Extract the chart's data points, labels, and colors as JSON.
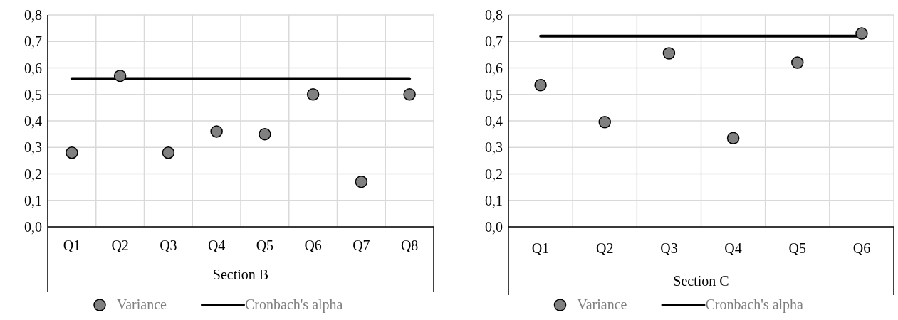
{
  "chart_data": [
    {
      "type": "scatter",
      "xlabel": "Section B",
      "categories": [
        "Q1",
        "Q2",
        "Q3",
        "Q4",
        "Q5",
        "Q6",
        "Q7",
        "Q8"
      ],
      "ylim": [
        0,
        0.8
      ],
      "yticks": [
        {
          "value": 0,
          "label": "0,0"
        },
        {
          "value": 0.1,
          "label": "0,1"
        },
        {
          "value": 0.2,
          "label": "0,2"
        },
        {
          "value": 0.3,
          "label": "0,3"
        },
        {
          "value": 0.4,
          "label": "0,4"
        },
        {
          "value": 0.5,
          "label": "0,5"
        },
        {
          "value": 0.6,
          "label": "0,6"
        },
        {
          "value": 0.7,
          "label": "0,7"
        },
        {
          "value": 0.8,
          "label": "0,8"
        }
      ],
      "grid": true,
      "legend": "bottom",
      "series": [
        {
          "name": "Variance",
          "color": "#808080",
          "marker": "circle",
          "values": [
            0.28,
            0.57,
            0.28,
            0.36,
            0.35,
            0.5,
            0.17,
            0.5
          ]
        },
        {
          "name": "Cronbach's alpha",
          "type": "line",
          "color": "#000000",
          "marker": "none",
          "values": [
            0.56,
            0.56,
            0.56,
            0.56,
            0.56,
            0.56,
            0.56,
            0.56
          ]
        }
      ]
    },
    {
      "type": "scatter",
      "xlabel": "Section C",
      "categories": [
        "Q1",
        "Q2",
        "Q3",
        "Q4",
        "Q5",
        "Q6"
      ],
      "ylim": [
        0,
        0.8
      ],
      "yticks": [
        {
          "value": 0,
          "label": "0,0"
        },
        {
          "value": 0.1,
          "label": "0,1"
        },
        {
          "value": 0.2,
          "label": "0,2"
        },
        {
          "value": 0.3,
          "label": "0,3"
        },
        {
          "value": 0.4,
          "label": "0,4"
        },
        {
          "value": 0.5,
          "label": "0,5"
        },
        {
          "value": 0.6,
          "label": "0,6"
        },
        {
          "value": 0.7,
          "label": "0,7"
        },
        {
          "value": 0.8,
          "label": "0,8"
        }
      ],
      "grid": true,
      "legend": "bottom",
      "series": [
        {
          "name": "Variance",
          "color": "#808080",
          "marker": "circle",
          "values": [
            0.535,
            0.395,
            0.655,
            0.335,
            0.62,
            0.73
          ]
        },
        {
          "name": "Cronbach's alpha",
          "type": "line",
          "color": "#000000",
          "marker": "none",
          "values": [
            0.72,
            0.72,
            0.72,
            0.72,
            0.72,
            0.72
          ]
        }
      ]
    }
  ]
}
